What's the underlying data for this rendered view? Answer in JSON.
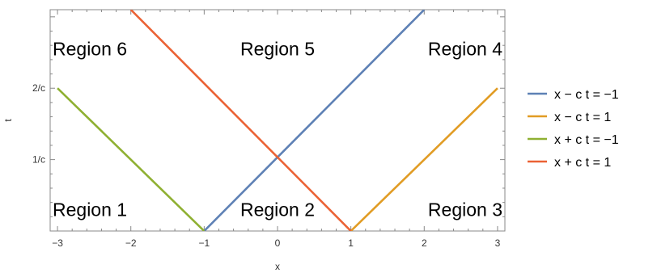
{
  "chart_data": {
    "type": "line",
    "xlabel": "x",
    "ylabel": "t",
    "xlim": [
      -3.1,
      3.1
    ],
    "ylim": [
      0,
      3.1
    ],
    "x_ticks": [
      {
        "value": -3,
        "label": "−3"
      },
      {
        "value": -2,
        "label": "−2"
      },
      {
        "value": -1,
        "label": "−1"
      },
      {
        "value": 0,
        "label": "0"
      },
      {
        "value": 1,
        "label": "1"
      },
      {
        "value": 2,
        "label": "2"
      },
      {
        "value": 3,
        "label": "3"
      }
    ],
    "y_ticks": [
      {
        "value": 1,
        "label": "1/c"
      },
      {
        "value": 2,
        "label": "2/c"
      }
    ],
    "series": [
      {
        "name": "x − c t = −1",
        "color": "#5e81b5",
        "points": [
          [
            -1,
            0
          ],
          [
            2,
            3.1
          ]
        ]
      },
      {
        "name": "x − c t = 1",
        "color": "#e19c24",
        "points": [
          [
            1,
            0
          ],
          [
            3,
            2
          ]
        ]
      },
      {
        "name": "x + c t = −1",
        "color": "#8fb032",
        "points": [
          [
            -1,
            0
          ],
          [
            -3,
            2
          ]
        ]
      },
      {
        "name": "x + c t = 1",
        "color": "#eb6235",
        "points": [
          [
            1,
            0
          ],
          [
            -2,
            3.1
          ]
        ]
      }
    ],
    "annotations": [
      {
        "text": "Region 1",
        "x": -3,
        "y": 0.3,
        "anchor": "start"
      },
      {
        "text": "Region 2",
        "x": 0,
        "y": 0.3,
        "anchor": "middle"
      },
      {
        "text": "Region 3",
        "x": 3,
        "y": 0.3,
        "anchor": "end"
      },
      {
        "text": "Region 4",
        "x": 3,
        "y": 2.55,
        "anchor": "end"
      },
      {
        "text": "Region 5",
        "x": 0,
        "y": 2.55,
        "anchor": "middle"
      },
      {
        "text": "Region 6",
        "x": -3,
        "y": 2.55,
        "anchor": "start"
      }
    ],
    "legend_position": "right",
    "grid": false
  }
}
